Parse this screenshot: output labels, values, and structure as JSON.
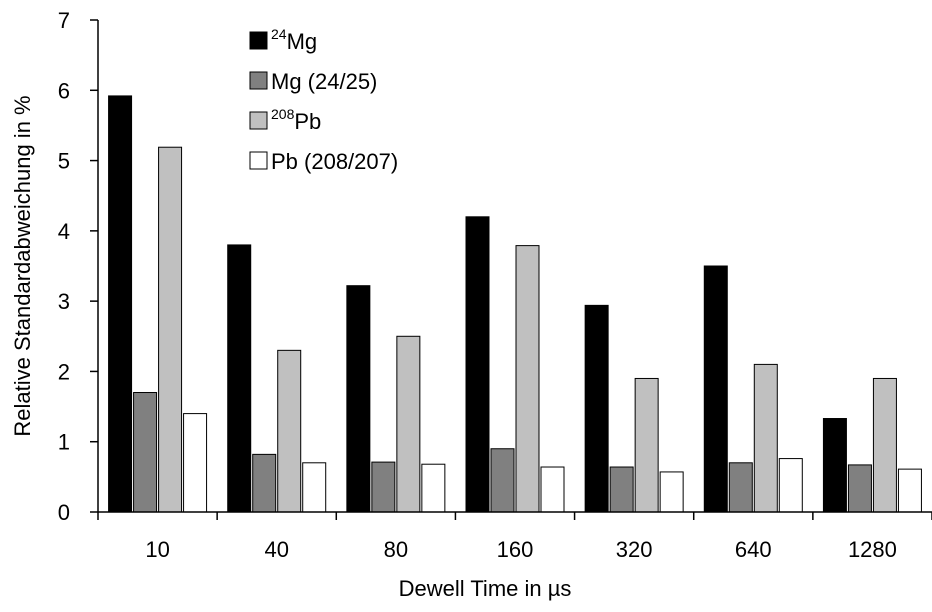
{
  "chart_data": {
    "type": "bar",
    "xlabel": "Dewell Time in µs",
    "ylabel": "Relative Standardabweichung in %",
    "ylim": [
      0,
      7
    ],
    "yticks": [
      0,
      1,
      2,
      3,
      4,
      5,
      6,
      7
    ],
    "categories": [
      "10",
      "40",
      "80",
      "160",
      "320",
      "640",
      "1280"
    ],
    "legend_position": "top-center",
    "series": [
      {
        "name": "24Mg",
        "name_sup": "24",
        "name_base": "Mg",
        "color": "#000000",
        "values": [
          5.92,
          3.8,
          3.22,
          4.2,
          2.94,
          3.5,
          1.33
        ]
      },
      {
        "name": "Mg (24/25)",
        "name_sup": "",
        "name_base": "Mg (24/25)",
        "color": "#808080",
        "values": [
          1.7,
          0.82,
          0.71,
          0.9,
          0.64,
          0.7,
          0.67
        ]
      },
      {
        "name": "208Pb",
        "name_sup": "208",
        "name_base": "Pb",
        "color": "#c0c0c0",
        "values": [
          5.19,
          2.3,
          2.5,
          3.79,
          1.9,
          2.1,
          1.9
        ]
      },
      {
        "name": "Pb (208/207)",
        "name_sup": "",
        "name_base": "Pb (208/207)",
        "color": "#ffffff",
        "values": [
          1.4,
          0.7,
          0.68,
          0.64,
          0.57,
          0.76,
          0.61
        ]
      }
    ]
  }
}
